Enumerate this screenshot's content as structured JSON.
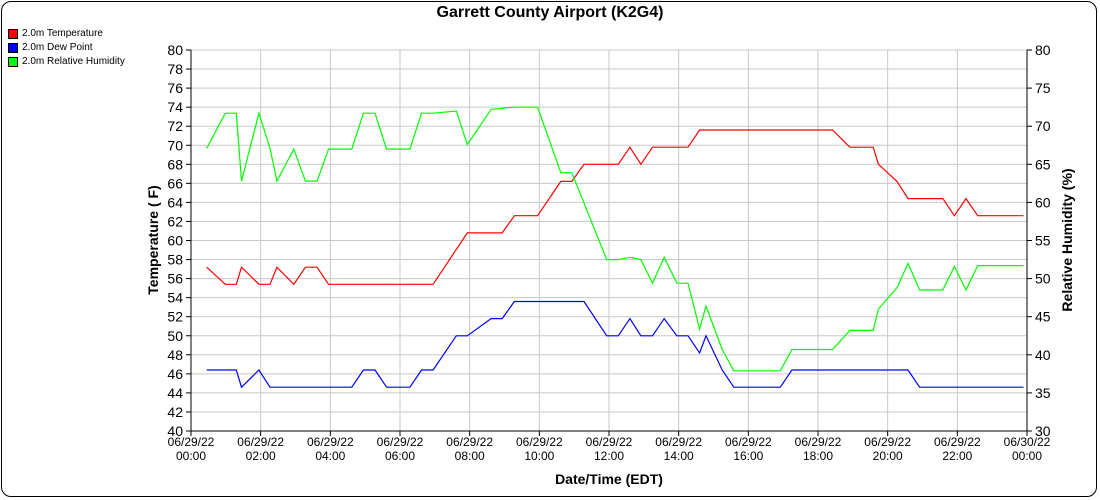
{
  "chart_data": {
    "type": "line",
    "title": "Garrett County Airport (K2G4)",
    "xlabel": "Date/Time (EDT)",
    "ylabel": "Temperature ( F)",
    "y2label": "Relative Humidity (%)",
    "ylim": [
      40,
      80
    ],
    "y2lim": [
      30,
      80
    ],
    "xlim": [
      "06/29/22 00:00",
      "06/30/22 00:00"
    ],
    "grid": true,
    "legend_position": "top-left",
    "y_ticks": [
      40,
      42,
      44,
      46,
      48,
      50,
      52,
      54,
      56,
      58,
      60,
      62,
      64,
      66,
      68,
      70,
      72,
      74,
      76,
      78,
      80
    ],
    "y2_ticks": [
      30,
      35,
      40,
      45,
      50,
      55,
      60,
      65,
      70,
      75,
      80
    ],
    "x_ticks": [
      {
        "date": "06/29/22",
        "time": "00:00"
      },
      {
        "date": "06/29/22",
        "time": "02:00"
      },
      {
        "date": "06/29/22",
        "time": "04:00"
      },
      {
        "date": "06/29/22",
        "time": "06:00"
      },
      {
        "date": "06/29/22",
        "time": "08:00"
      },
      {
        "date": "06/29/22",
        "time": "10:00"
      },
      {
        "date": "06/29/22",
        "time": "12:00"
      },
      {
        "date": "06/29/22",
        "time": "14:00"
      },
      {
        "date": "06/29/22",
        "time": "16:00"
      },
      {
        "date": "06/29/22",
        "time": "18:00"
      },
      {
        "date": "06/29/22",
        "time": "20:00"
      },
      {
        "date": "06/29/22",
        "time": "22:00"
      },
      {
        "date": "06/30/22",
        "time": "00:00"
      }
    ],
    "series": [
      {
        "name": "2.0m Temperature",
        "color": "#ff0000",
        "axis": "left",
        "points": [
          [
            "00:27",
            57.2
          ],
          [
            "00:59",
            55.4
          ],
          [
            "01:18",
            55.4
          ],
          [
            "01:27",
            57.2
          ],
          [
            "01:57",
            55.4
          ],
          [
            "02:16",
            55.4
          ],
          [
            "02:28",
            57.2
          ],
          [
            "02:57",
            55.4
          ],
          [
            "03:17",
            57.2
          ],
          [
            "03:37",
            57.2
          ],
          [
            "03:57",
            55.4
          ],
          [
            "06:57",
            55.4
          ],
          [
            "07:56",
            60.8
          ],
          [
            "08:56",
            60.8
          ],
          [
            "09:17",
            62.6
          ],
          [
            "09:57",
            62.6
          ],
          [
            "10:37",
            66.2
          ],
          [
            "10:56",
            66.2
          ],
          [
            "11:17",
            68.0
          ],
          [
            "12:16",
            68.0
          ],
          [
            "12:36",
            69.8
          ],
          [
            "12:55",
            68.0
          ],
          [
            "13:15",
            69.8
          ],
          [
            "14:16",
            69.8
          ],
          [
            "14:36",
            71.6
          ],
          [
            "18:25",
            71.6
          ],
          [
            "18:55",
            69.8
          ],
          [
            "19:35",
            69.8
          ],
          [
            "19:44",
            68.0
          ],
          [
            "20:16",
            66.2
          ],
          [
            "20:35",
            64.4
          ],
          [
            "21:35",
            64.4
          ],
          [
            "21:55",
            62.6
          ],
          [
            "22:15",
            64.4
          ],
          [
            "22:35",
            62.6
          ],
          [
            "23:54",
            62.6
          ]
        ]
      },
      {
        "name": "2.0m Dew Point",
        "color": "#0000ff",
        "axis": "left",
        "points": [
          [
            "00:27",
            46.4
          ],
          [
            "01:18",
            46.4
          ],
          [
            "01:27",
            44.6
          ],
          [
            "01:57",
            46.4
          ],
          [
            "02:16",
            44.6
          ],
          [
            "04:37",
            44.6
          ],
          [
            "04:57",
            46.4
          ],
          [
            "05:17",
            46.4
          ],
          [
            "05:37",
            44.6
          ],
          [
            "06:17",
            44.6
          ],
          [
            "06:37",
            46.4
          ],
          [
            "06:57",
            46.4
          ],
          [
            "07:37",
            50.0
          ],
          [
            "07:56",
            50.0
          ],
          [
            "08:37",
            51.8
          ],
          [
            "08:56",
            51.8
          ],
          [
            "09:17",
            53.6
          ],
          [
            "11:17",
            53.6
          ],
          [
            "11:56",
            50.0
          ],
          [
            "12:16",
            50.0
          ],
          [
            "12:36",
            51.8
          ],
          [
            "12:55",
            50.0
          ],
          [
            "13:15",
            50.0
          ],
          [
            "13:35",
            51.8
          ],
          [
            "13:57",
            50.0
          ],
          [
            "14:16",
            50.0
          ],
          [
            "14:36",
            48.2
          ],
          [
            "14:47",
            50.0
          ],
          [
            "15:15",
            46.4
          ],
          [
            "15:35",
            44.6
          ],
          [
            "16:55",
            44.6
          ],
          [
            "17:15",
            46.4
          ],
          [
            "20:35",
            46.4
          ],
          [
            "20:55",
            44.6
          ],
          [
            "23:54",
            44.6
          ]
        ]
      },
      {
        "name": "2.0m Relative Humidity",
        "color": "#00ff00",
        "axis": "right",
        "points": [
          [
            "00:27",
            67.1
          ],
          [
            "00:59",
            71.7
          ],
          [
            "01:18",
            71.7
          ],
          [
            "01:27",
            62.8
          ],
          [
            "01:57",
            71.7
          ],
          [
            "02:16",
            67.1
          ],
          [
            "02:28",
            62.8
          ],
          [
            "02:57",
            67.0
          ],
          [
            "03:17",
            62.8
          ],
          [
            "03:37",
            62.8
          ],
          [
            "03:57",
            67.0
          ],
          [
            "04:37",
            67.0
          ],
          [
            "04:57",
            71.7
          ],
          [
            "05:17",
            71.7
          ],
          [
            "05:37",
            67.0
          ],
          [
            "06:17",
            67.0
          ],
          [
            "06:37",
            71.7
          ],
          [
            "06:57",
            71.7
          ],
          [
            "07:37",
            72.0
          ],
          [
            "07:56",
            67.6
          ],
          [
            "08:37",
            72.2
          ],
          [
            "09:17",
            72.5
          ],
          [
            "09:57",
            72.5
          ],
          [
            "10:37",
            63.9
          ],
          [
            "10:56",
            63.9
          ],
          [
            "11:56",
            52.5
          ],
          [
            "12:16",
            52.5
          ],
          [
            "12:36",
            52.8
          ],
          [
            "12:55",
            52.5
          ],
          [
            "13:15",
            49.4
          ],
          [
            "13:35",
            52.8
          ],
          [
            "13:57",
            49.4
          ],
          [
            "14:16",
            49.4
          ],
          [
            "14:36",
            43.4
          ],
          [
            "14:47",
            46.4
          ],
          [
            "15:15",
            40.7
          ],
          [
            "15:35",
            37.9
          ],
          [
            "16:55",
            37.9
          ],
          [
            "17:15",
            40.7
          ],
          [
            "18:25",
            40.7
          ],
          [
            "18:55",
            43.2
          ],
          [
            "19:35",
            43.2
          ],
          [
            "19:44",
            46.0
          ],
          [
            "20:16",
            48.8
          ],
          [
            "20:35",
            52.0
          ],
          [
            "20:55",
            48.5
          ],
          [
            "21:35",
            48.5
          ],
          [
            "21:55",
            51.6
          ],
          [
            "22:15",
            48.5
          ],
          [
            "22:35",
            51.7
          ],
          [
            "23:54",
            51.7
          ]
        ]
      }
    ]
  }
}
